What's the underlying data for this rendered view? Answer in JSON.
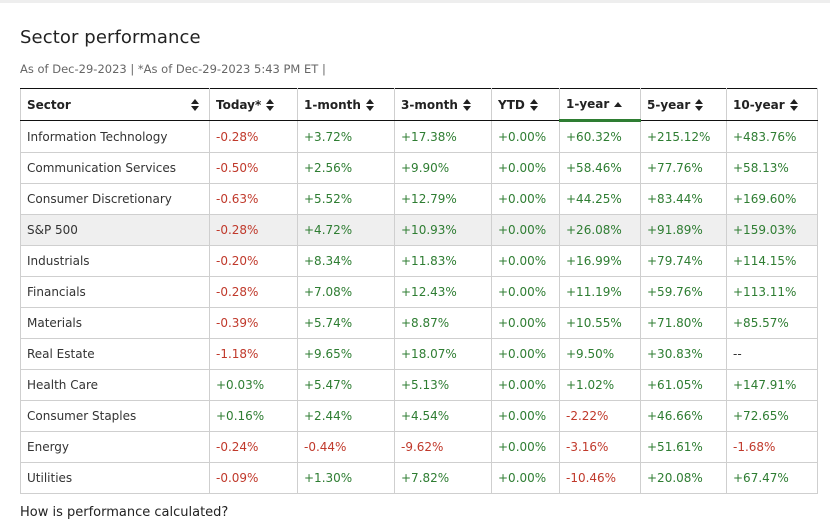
{
  "header": {
    "title": "Sector performance",
    "as_of": "As of Dec-29-2023 | *As of Dec-29-2023 5:43 PM ET |"
  },
  "table": {
    "columns": [
      "Sector",
      "Today*",
      "1-month",
      "3-month",
      "YTD",
      "1-year",
      "5-year",
      "10-year"
    ],
    "sorted_column": "1-year",
    "sort_direction": "ascending-icon",
    "rows": [
      {
        "name": "Information Technology",
        "today": "-0.28%",
        "m1": "+3.72%",
        "m3": "+17.38%",
        "ytd": "+0.00%",
        "y1": "+60.32%",
        "y5": "+215.12%",
        "y10": "+483.76%"
      },
      {
        "name": "Communication Services",
        "today": "-0.50%",
        "m1": "+2.56%",
        "m3": "+9.90%",
        "ytd": "+0.00%",
        "y1": "+58.46%",
        "y5": "+77.76%",
        "y10": "+58.13%"
      },
      {
        "name": "Consumer Discretionary",
        "today": "-0.63%",
        "m1": "+5.52%",
        "m3": "+12.79%",
        "ytd": "+0.00%",
        "y1": "+44.25%",
        "y5": "+83.44%",
        "y10": "+169.60%"
      },
      {
        "name": "S&P 500",
        "today": "-0.28%",
        "m1": "+4.72%",
        "m3": "+10.93%",
        "ytd": "+0.00%",
        "y1": "+26.08%",
        "y5": "+91.89%",
        "y10": "+159.03%",
        "highlight": true
      },
      {
        "name": "Industrials",
        "today": "-0.20%",
        "m1": "+8.34%",
        "m3": "+11.83%",
        "ytd": "+0.00%",
        "y1": "+16.99%",
        "y5": "+79.74%",
        "y10": "+114.15%"
      },
      {
        "name": "Financials",
        "today": "-0.28%",
        "m1": "+7.08%",
        "m3": "+12.43%",
        "ytd": "+0.00%",
        "y1": "+11.19%",
        "y5": "+59.76%",
        "y10": "+113.11%"
      },
      {
        "name": "Materials",
        "today": "-0.39%",
        "m1": "+5.74%",
        "m3": "+8.87%",
        "ytd": "+0.00%",
        "y1": "+10.55%",
        "y5": "+71.80%",
        "y10": "+85.57%"
      },
      {
        "name": "Real Estate",
        "today": "-1.18%",
        "m1": "+9.65%",
        "m3": "+18.07%",
        "ytd": "+0.00%",
        "y1": "+9.50%",
        "y5": "+30.83%",
        "y10": "--"
      },
      {
        "name": "Health Care",
        "today": "+0.03%",
        "m1": "+5.47%",
        "m3": "+5.13%",
        "ytd": "+0.00%",
        "y1": "+1.02%",
        "y5": "+61.05%",
        "y10": "+147.91%"
      },
      {
        "name": "Consumer Staples",
        "today": "+0.16%",
        "m1": "+2.44%",
        "m3": "+4.54%",
        "ytd": "+0.00%",
        "y1": "-2.22%",
        "y5": "+46.66%",
        "y10": "+72.65%"
      },
      {
        "name": "Energy",
        "today": "-0.24%",
        "m1": "-0.44%",
        "m3": "-9.62%",
        "ytd": "+0.00%",
        "y1": "-3.16%",
        "y5": "+51.61%",
        "y10": "-1.68%"
      },
      {
        "name": "Utilities",
        "today": "-0.09%",
        "m1": "+1.30%",
        "m3": "+7.82%",
        "ytd": "+0.00%",
        "y1": "-10.46%",
        "y5": "+20.08%",
        "y10": "+67.47%"
      }
    ]
  },
  "footer": {
    "help_link": "How is performance calculated?"
  },
  "colors": {
    "positive": "#2e7d32",
    "negative": "#c0392b",
    "highlight_row": "#efefef",
    "sort_indicator": "#2e7d32"
  }
}
